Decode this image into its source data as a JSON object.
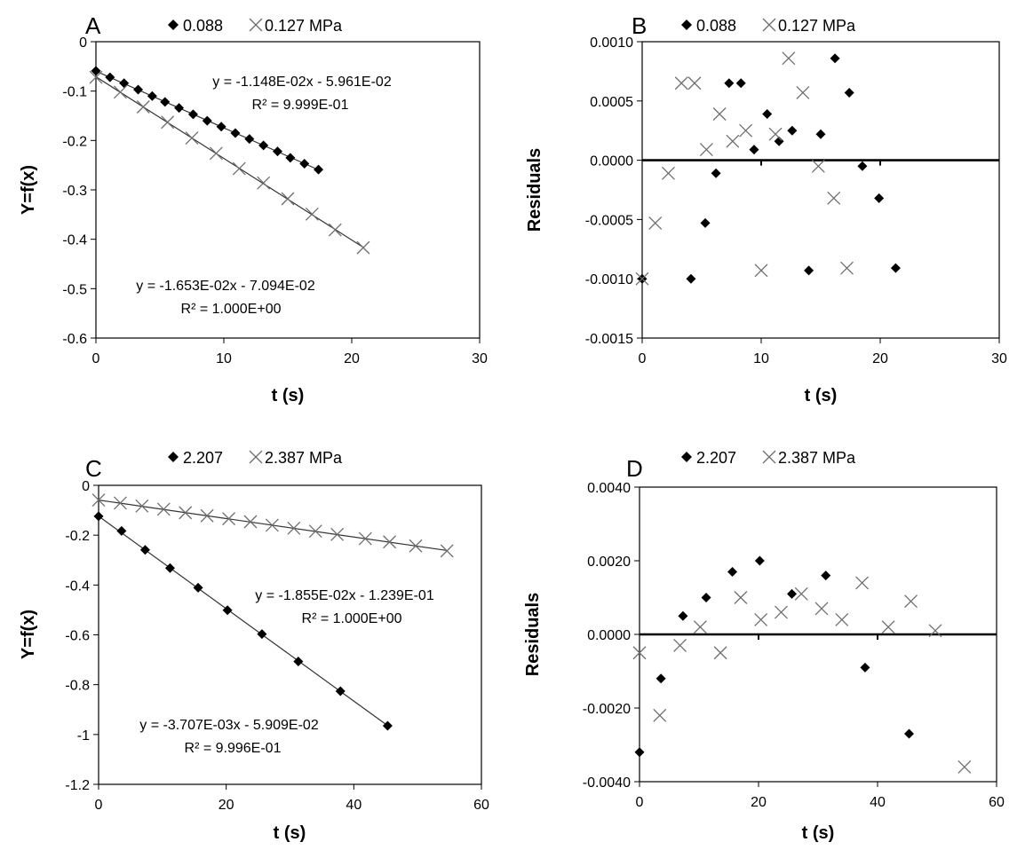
{
  "chart_data": [
    {
      "panel_letter": "A",
      "type": "scatter",
      "xlabel": "t (s)",
      "ylabel": "Y=f(x)",
      "xlim": [
        0,
        30
      ],
      "ylim": [
        -0.6,
        0
      ],
      "xticks": [
        0,
        10,
        20,
        30
      ],
      "yticks": [
        0,
        -0.1,
        -0.2,
        -0.3,
        -0.4,
        -0.5,
        -0.6
      ],
      "ytick_labels": [
        "0",
        "-0.1",
        "-0.2",
        "-0.3",
        "-0.4",
        "-0.5",
        "-0.6"
      ],
      "legend_placement": "top",
      "legend_suffix": "MPa",
      "annotations": [
        {
          "text": "y = -1.148E-02x - 5.961E-02"
        },
        {
          "text": "R² = 9.999E-01"
        },
        {
          "text": "y = -1.653E-02x - 7.094E-02"
        },
        {
          "text": "R² = 1.000E+00"
        }
      ],
      "series": [
        {
          "name": "0.088",
          "marker": "diamond",
          "x": [
            0,
            1.1,
            2.2,
            3.3,
            4.4,
            5.4,
            6.5,
            7.6,
            8.7,
            9.8,
            10.9,
            12.0,
            13.1,
            14.2,
            15.2,
            16.3,
            17.4
          ],
          "y": [
            -0.059,
            -0.072,
            -0.084,
            -0.097,
            -0.11,
            -0.122,
            -0.134,
            -0.147,
            -0.16,
            -0.172,
            -0.185,
            -0.197,
            -0.21,
            -0.222,
            -0.235,
            -0.247,
            -0.259
          ],
          "fit": {
            "slope": -0.01148,
            "intercept": -0.05961,
            "x": [
              0,
              17.4
            ]
          }
        },
        {
          "name": "0.127",
          "marker": "x",
          "x": [
            0,
            1.9,
            3.7,
            5.6,
            7.5,
            9.4,
            11.2,
            13.1,
            15.0,
            16.9,
            18.7,
            20.9
          ],
          "y": [
            -0.072,
            -0.102,
            -0.132,
            -0.163,
            -0.195,
            -0.226,
            -0.257,
            -0.286,
            -0.318,
            -0.349,
            -0.381,
            -0.417
          ],
          "fit": {
            "slope": -0.01653,
            "intercept": -0.07094,
            "x": [
              0,
              20.9
            ]
          }
        }
      ]
    },
    {
      "panel_letter": "B",
      "type": "scatter",
      "xlabel": "t (s)",
      "ylabel": "Residuals",
      "xlim": [
        0,
        30
      ],
      "ylim": [
        -0.0015,
        0.001
      ],
      "xticks": [
        0,
        10,
        20,
        30
      ],
      "yticks": [
        0.001,
        0.0005,
        0,
        -0.0005,
        -0.001,
        -0.0015
      ],
      "ytick_labels": [
        "0.0010",
        "0.0005",
        "0.0000",
        "-0.0005",
        "-0.0010",
        "-0.0015"
      ],
      "zero_line": true,
      "legend_placement": "top",
      "legend_suffix": "MPa",
      "series": [
        {
          "name": "0.088",
          "marker": "diamond",
          "x": [
            0,
            4.1,
            5.3,
            6.2,
            7.3,
            8.3,
            9.4,
            10.5,
            11.5,
            12.6,
            14.0,
            15.0,
            16.2,
            17.4,
            18.5,
            19.9,
            21.3
          ],
          "y": [
            -0.001,
            -0.001,
            -0.00053,
            -0.00011,
            0.00065,
            0.00065,
            9e-05,
            0.00039,
            0.00016,
            0.00025,
            -0.00093,
            0.00022,
            0.00086,
            0.00057,
            -5e-05,
            -0.00032,
            -0.00091
          ]
        },
        {
          "name": "0.127",
          "marker": "x",
          "x": [
            0,
            1.1,
            2.2,
            3.3,
            4.4,
            5.4,
            6.5,
            7.6,
            8.7,
            10.0,
            11.2,
            12.3,
            13.5,
            14.8,
            16.1,
            17.2
          ],
          "y": [
            -0.001,
            -0.00053,
            -0.00011,
            0.00065,
            0.00065,
            9e-05,
            0.00039,
            0.00016,
            0.00025,
            -0.00093,
            0.00022,
            0.00086,
            0.00057,
            -5e-05,
            -0.00032,
            -0.00091
          ]
        }
      ]
    },
    {
      "panel_letter": "C",
      "type": "scatter",
      "xlabel": "t (s)",
      "ylabel": "Y=f(x)",
      "xlim": [
        0,
        60
      ],
      "ylim": [
        -1.2,
        0
      ],
      "xticks": [
        0,
        20,
        40,
        60
      ],
      "yticks": [
        0,
        -0.2,
        -0.4,
        -0.6,
        -0.8,
        -1,
        -1.2
      ],
      "ytick_labels": [
        "0",
        "-0.2",
        "-0.4",
        "-0.6",
        "-0.8",
        "-1",
        "-1.2"
      ],
      "legend_placement": "top",
      "legend_suffix": "MPa",
      "annotations": [
        {
          "text": "y = -1.855E-02x - 1.239E-01"
        },
        {
          "text": "R² = 1.000E+00"
        },
        {
          "text": "y = -3.707E-03x - 5.909E-02"
        },
        {
          "text": "R² = 9.996E-01"
        }
      ],
      "series": [
        {
          "name": "2.207",
          "marker": "diamond",
          "x": [
            0,
            3.6,
            7.3,
            11.2,
            15.6,
            20.2,
            25.6,
            31.3,
            37.9,
            45.3
          ],
          "y": [
            -0.124,
            -0.183,
            -0.259,
            -0.332,
            -0.411,
            -0.501,
            -0.597,
            -0.707,
            -0.826,
            -0.965
          ],
          "fit": {
            "slope": -0.01855,
            "intercept": -0.1239,
            "x": [
              0,
              45.3
            ]
          }
        },
        {
          "name": "2.387",
          "marker": "x",
          "x": [
            0,
            3.4,
            6.8,
            10.2,
            13.6,
            17.0,
            20.4,
            23.8,
            27.2,
            30.6,
            34.0,
            37.4,
            41.8,
            45.6,
            49.7,
            54.6
          ],
          "y": [
            -0.059,
            -0.071,
            -0.083,
            -0.096,
            -0.11,
            -0.122,
            -0.134,
            -0.146,
            -0.16,
            -0.172,
            -0.184,
            -0.197,
            -0.214,
            -0.227,
            -0.243,
            -0.263
          ],
          "fit": {
            "slope": -0.003707,
            "intercept": -0.05909,
            "x": [
              0,
              54.6
            ]
          }
        }
      ]
    },
    {
      "panel_letter": "D",
      "type": "scatter",
      "xlabel": "t (s)",
      "ylabel": "Residuals",
      "xlim": [
        0,
        60
      ],
      "ylim": [
        -0.004,
        0.004
      ],
      "xticks": [
        0,
        20,
        40,
        60
      ],
      "yticks": [
        0.004,
        0.002,
        0,
        -0.002,
        -0.004
      ],
      "ytick_labels": [
        "0.0040",
        "0.0020",
        "0.0000",
        "-0.0020",
        "-0.0040"
      ],
      "zero_line": true,
      "legend_placement": "top",
      "legend_suffix": "MPa",
      "series": [
        {
          "name": "2.207",
          "marker": "diamond",
          "x": [
            0,
            3.6,
            7.3,
            11.2,
            15.6,
            20.2,
            25.6,
            31.3,
            37.9,
            45.3
          ],
          "y": [
            -0.0032,
            -0.0012,
            0.0005,
            0.001,
            0.0017,
            0.002,
            0.0011,
            0.0016,
            -0.0009,
            -0.0027
          ]
        },
        {
          "name": "2.387",
          "marker": "x",
          "x": [
            0,
            3.4,
            6.8,
            10.2,
            13.6,
            17.0,
            20.4,
            23.8,
            27.2,
            30.6,
            34.0,
            37.4,
            41.8,
            45.6,
            49.7,
            54.6
          ],
          "y": [
            -0.0005,
            -0.0022,
            -0.0003,
            0.0002,
            -0.0005,
            0.001,
            0.0004,
            0.0006,
            0.0011,
            0.0007,
            0.0004,
            0.0014,
            0.0002,
            0.0009,
            0.0001,
            -0.0036
          ]
        }
      ]
    }
  ]
}
